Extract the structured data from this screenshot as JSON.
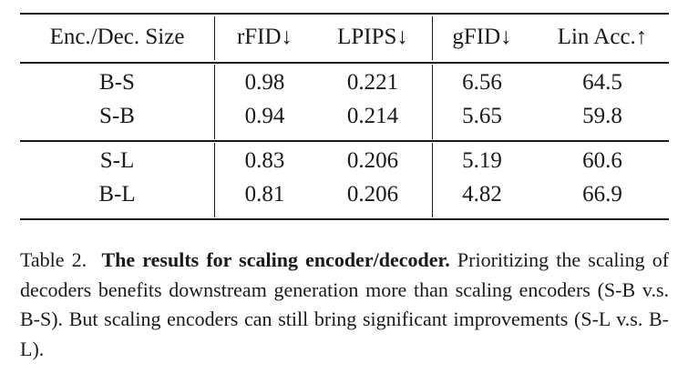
{
  "table": {
    "headers": [
      "Enc./Dec. Size",
      "rFID↓",
      "LPIPS↓",
      "gFID↓",
      "Lin Acc.↑"
    ],
    "groups": [
      [
        [
          "B-S",
          "0.98",
          "0.221",
          "6.56",
          "64.5"
        ],
        [
          "S-B",
          "0.94",
          "0.214",
          "5.65",
          "59.8"
        ]
      ],
      [
        [
          "S-L",
          "0.83",
          "0.206",
          "5.19",
          "60.6"
        ],
        [
          "B-L",
          "0.81",
          "0.206",
          "4.82",
          "66.9"
        ]
      ]
    ]
  },
  "caption": {
    "label": "Table 2.",
    "title": "The results for scaling encoder/decoder.",
    "body": "Prioritizing the scaling of decoders benefits downstream generation more than scaling encoders (S-B v.s.  B-S). But scaling encoders can still bring significant improvements (S-L v.s. B-L)."
  }
}
